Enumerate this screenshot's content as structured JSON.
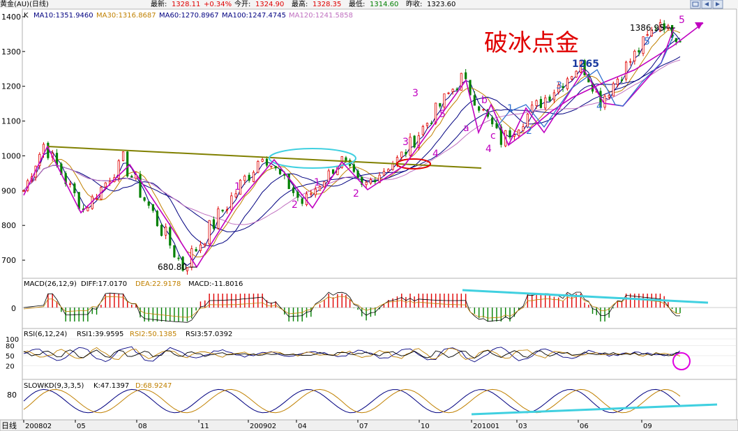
{
  "header": {
    "symbol": "黄金(AU)(日线)",
    "latest_label": "最新:",
    "latest_value": "1328.11",
    "change_value": "+0.34%",
    "open_label": "今开:",
    "open_value": "1324.90",
    "high_label": "最高:",
    "high_value": "1328.35",
    "low_label": "最低:",
    "low_value": "1314.60",
    "prev_label": "昨收:",
    "prev_value": "1323.60"
  },
  "main_panel": {
    "k_label": "K",
    "ma_legend": [
      {
        "text": "MA10:1351.9460",
        "color": "#000080"
      },
      {
        "text": "MA30:1316.8687",
        "color": "#c08000"
      },
      {
        "text": "MA60:1270.8967",
        "color": "#000080"
      },
      {
        "text": "MA100:1247.4745",
        "color": "#000080"
      },
      {
        "text": "MA120:1241.5858",
        "color": "#c070c0"
      }
    ],
    "yticks": [
      "1400",
      "1300",
      "1200",
      "1100",
      "1000",
      "900",
      "800",
      "700"
    ],
    "title_overlay": "破冰点金",
    "high_annotation": "1386.95",
    "low_annotation": "680.80"
  },
  "macd_panel": {
    "label": "MACD(26,12,9)",
    "diff": "DIFF:17.0170",
    "dea": "DEA:22.9178",
    "macd": "MACD:-11.8016",
    "ytick": "0"
  },
  "rsi_panel": {
    "label": "RSI(6,12,24)",
    "rsi1": "RSI1:39.9595",
    "rsi2": "RSI2:50.1385",
    "rsi3": "RSI3:57.0392",
    "yticks": [
      "100",
      "80",
      "50",
      "20"
    ]
  },
  "kd_panel": {
    "label": "SLOWKD(9,3,3,5)",
    "k": "K:47.1397",
    "d": "D:68.9247",
    "ytick": "80"
  },
  "x_axis": {
    "period_label": "日线",
    "ticks": [
      "200802",
      "05",
      "08",
      "11",
      "200902",
      "04",
      "07",
      "10",
      "201001",
      "03",
      "06",
      "09"
    ]
  },
  "wave_labels": {
    "w1": "1",
    "w2": "2",
    "w3": "3",
    "w4": "4",
    "w5": "5",
    "w1b": "1",
    "w2b": "2",
    "w3b": "3",
    "w4b": "4",
    "w5b": "5",
    "wa": "a",
    "wb": "b",
    "wc": "c",
    "w4c": "4",
    "w1c": "1",
    "w2c": "2",
    "w3c": "3",
    "w1265": "1265",
    "w4d": "4",
    "w5c": "5",
    "w5d": "5"
  },
  "chart_data": {
    "type": "candlestick",
    "title": "",
    "x_ticks": [
      "200802",
      "05",
      "08",
      "11",
      "200902",
      "04",
      "07",
      "10",
      "201001",
      "03",
      "06",
      "09"
    ],
    "ylim": [
      650,
      1420
    ],
    "price_swings": [
      {
        "date": "2008-02",
        "price": 900
      },
      {
        "date": "2008-03",
        "price": 1033
      },
      {
        "date": "2008-05",
        "price": 845
      },
      {
        "date": "2008-07",
        "price": 985
      },
      {
        "date": "2008-10",
        "price": 680.8
      },
      {
        "date": "2009-02",
        "price": 1005
      },
      {
        "date": "2009-04",
        "price": 865
      },
      {
        "date": "2009-06",
        "price": 990
      },
      {
        "date": "2009-07",
        "price": 910
      },
      {
        "date": "2009-09",
        "price": 1000
      },
      {
        "date": "2009-12",
        "price": 1225
      },
      {
        "date": "2010-02",
        "price": 1045
      },
      {
        "date": "2010-06",
        "price": 1265
      },
      {
        "date": "2010-07",
        "price": 1160
      },
      {
        "date": "2010-10",
        "price": 1386.95
      },
      {
        "date": "2010-11",
        "price": 1328
      }
    ],
    "moving_averages": {
      "MA10": 1351.946,
      "MA30": 1316.8687,
      "MA60": 1270.8967,
      "MA100": 1247.4745,
      "MA120": 1241.5858
    },
    "latest": {
      "close": 1328.11,
      "open": 1324.9,
      "high": 1328.35,
      "low": 1314.6,
      "prev_close": 1323.6,
      "change_pct": "+0.34%"
    },
    "indicators": {
      "MACD": {
        "DIFF": 17.017,
        "DEA": 22.9178,
        "MACD": -11.8016
      },
      "RSI": {
        "RSI1": 39.9595,
        "RSI2": 50.1385,
        "RSI3": 57.0392
      },
      "SLOWKD": {
        "K": 47.1397,
        "D": 68.9247
      }
    },
    "colors": {
      "up": "#e00000",
      "down": "#008000",
      "zigzag": "#c000c0",
      "trendline": "#808000",
      "highlight": "#40d0e0"
    }
  }
}
